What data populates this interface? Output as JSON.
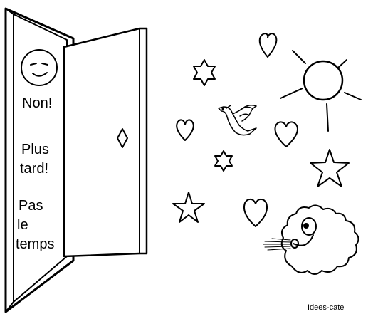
{
  "door_text": {
    "line1": "Non!",
    "line2a": "Plus",
    "line2b": "tard!",
    "line3a": "Pas",
    "line3b": "le",
    "line3c": "temps"
  },
  "credit": "Idees-cate",
  "colors": {
    "ink": "#000000",
    "paper": "#ffffff"
  },
  "icons": [
    "closed-face-icon",
    "door-knob-icon",
    "heart-icon",
    "star-icon",
    "sun-icon",
    "dove-icon",
    "wind-cloud-icon"
  ]
}
